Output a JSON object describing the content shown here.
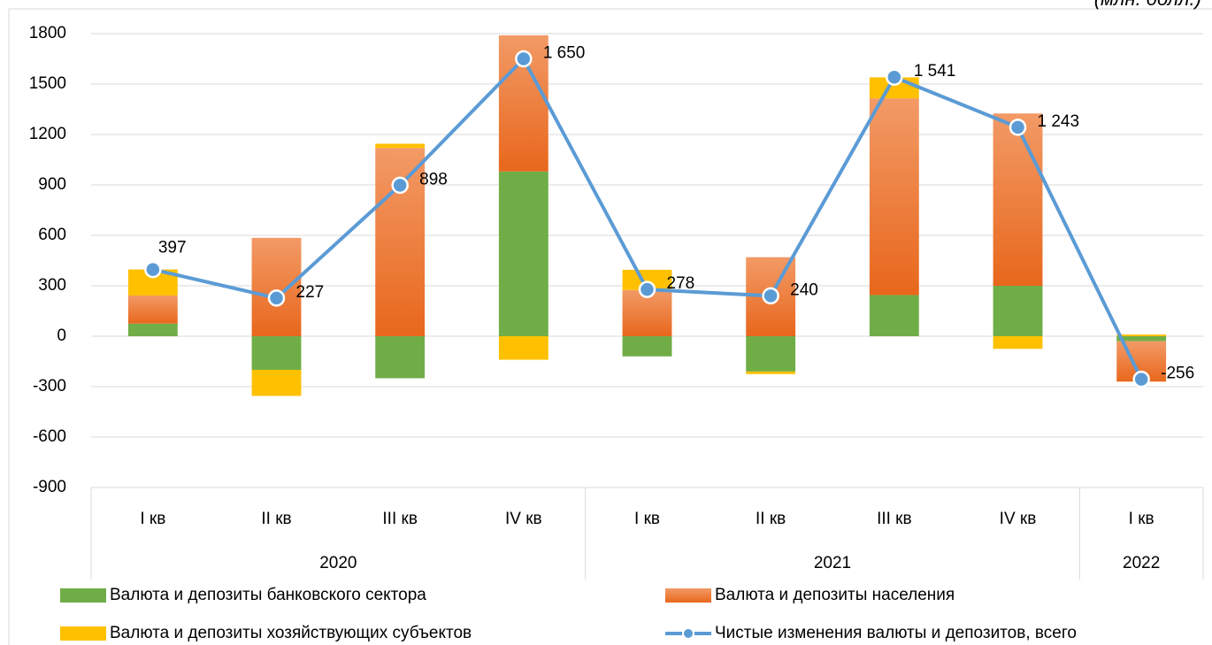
{
  "chart_data": {
    "type": "bar_line",
    "unit_note": "(млн. долл.)",
    "groups": [
      {
        "name": "2020",
        "categories": [
          "I кв",
          "II кв",
          "III кв",
          "IV кв"
        ]
      },
      {
        "name": "2021",
        "categories": [
          "I кв",
          "II кв",
          "III кв",
          "IV кв"
        ]
      },
      {
        "name": "2022",
        "categories": [
          "I кв"
        ]
      }
    ],
    "series": [
      {
        "name": "Валюта и депозиты банковского сектора",
        "type": "bar",
        "color": "#70ad47",
        "values": [
          75,
          -200,
          -250,
          980,
          -120,
          -210,
          245,
          300,
          -30
        ]
      },
      {
        "name": "Валюта и депозиты населения",
        "type": "bar",
        "color": "#ed7d31",
        "values": [
          167,
          585,
          1120,
          810,
          275,
          470,
          1170,
          1025,
          -240
        ]
      },
      {
        "name": "Валюта и депозиты хозяйствующих субъектов",
        "type": "bar",
        "color": "#ffc000",
        "values": [
          155,
          -155,
          25,
          -140,
          120,
          -15,
          125,
          -75,
          10
        ]
      },
      {
        "name": "Чистые изменения валюты и депозитов, всего",
        "type": "line",
        "color": "#5b9bd5",
        "values": [
          397,
          227,
          898,
          1650,
          278,
          240,
          1541,
          1243,
          -256
        ],
        "value_labels": [
          "397",
          "227",
          "898",
          "1 650",
          "278",
          "240",
          "1 541",
          "1 243",
          "-256"
        ]
      }
    ],
    "ylim": [
      -900,
      1800
    ],
    "yticks": [
      -900,
      -600,
      -300,
      0,
      300,
      600,
      900,
      1200,
      1500,
      1800
    ],
    "grid": true,
    "legend": "bottom"
  }
}
